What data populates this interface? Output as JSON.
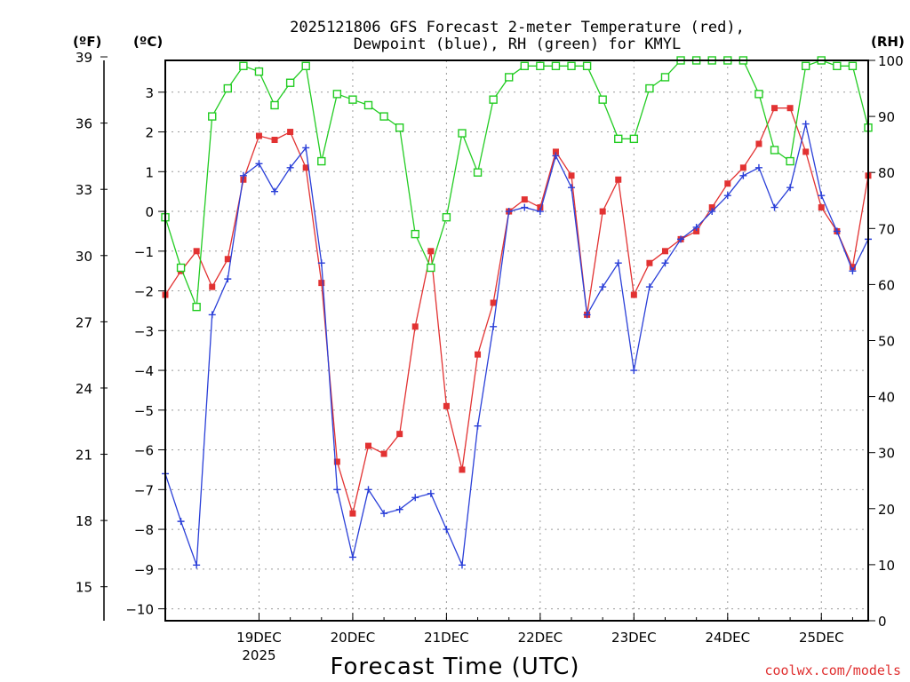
{
  "chart_data": {
    "type": "line",
    "title_line1": "2025121806 GFS Forecast 2-meter Temperature (red),",
    "title_line2": "Dewpoint (blue), RH (green) for KMYL",
    "unit_labels": {
      "fahrenheit": "(ºF)",
      "celsius": "(ºC)",
      "rh": "(RH)"
    },
    "xlabel": "Forecast Time (UTC)",
    "credit": "coolwx.com/models",
    "x_unit": "hours since 2025-12-18 00Z",
    "xlim": [
      6,
      141
    ],
    "x_ticks": [
      {
        "label": "19DEC",
        "sublabel": "2025",
        "x": 24
      },
      {
        "label": "20DEC",
        "sublabel": "",
        "x": 42
      },
      {
        "label": "21DEC",
        "sublabel": "",
        "x": 60
      },
      {
        "label": "22DEC",
        "sublabel": "",
        "x": 78
      },
      {
        "label": "23DEC",
        "sublabel": "",
        "x": 96
      },
      {
        "label": "24DEC",
        "sublabel": "",
        "x": 114
      },
      {
        "label": "25DEC",
        "sublabel": "",
        "x": 132
      }
    ],
    "celsius_axis": {
      "range": [
        -10.3,
        3.8
      ],
      "ticks": [
        3,
        2,
        1,
        0,
        -1,
        -2,
        -3,
        -4,
        -5,
        -6,
        -7,
        -8,
        -9,
        -10
      ],
      "tick_labels": [
        "3",
        "2",
        "1",
        "0",
        "−1",
        "−2",
        "−3",
        "−4",
        "−5",
        "−6",
        "−7",
        "−8",
        "−9",
        "−10"
      ]
    },
    "fahrenheit_axis": {
      "ticks": [
        39,
        36,
        33,
        30,
        27,
        24,
        21,
        18,
        15
      ],
      "tick_labels": [
        "39",
        "36",
        "33",
        "30",
        "27",
        "24",
        "21",
        "18",
        "15"
      ]
    },
    "rh_axis": {
      "range": [
        0,
        100
      ],
      "ticks": [
        100,
        90,
        80,
        70,
        60,
        50,
        40,
        30,
        20,
        10,
        0
      ],
      "tick_labels": [
        "100",
        "90",
        "80",
        "70",
        "60",
        "50",
        "40",
        "30",
        "20",
        "10",
        "0"
      ]
    },
    "grid": true,
    "series": [
      {
        "name": "Temperature",
        "unit": "C",
        "color": "#e23232",
        "marker": "filled-square",
        "x": [
          6,
          9,
          12,
          15,
          18,
          21,
          24,
          27,
          30,
          33,
          36,
          39,
          42,
          45,
          48,
          51,
          54,
          57,
          60,
          63,
          66,
          69,
          72,
          75,
          78,
          81,
          84,
          87,
          90,
          93,
          96,
          99,
          102,
          105,
          108,
          111,
          114,
          117,
          120,
          123,
          126,
          129,
          132,
          135,
          138,
          141
        ],
        "values": [
          -2.1,
          -1.5,
          -1.0,
          -1.9,
          -1.2,
          0.8,
          1.9,
          1.8,
          2.0,
          1.1,
          -1.8,
          -6.3,
          -7.6,
          -5.9,
          -6.1,
          -5.6,
          -2.9,
          -1.0,
          -4.9,
          -6.5,
          -3.6,
          -2.3,
          0.0,
          0.3,
          0.1,
          1.5,
          0.9,
          -2.6,
          0.0,
          0.8,
          -2.1,
          -1.3,
          -1.0,
          -0.7,
          -0.5,
          0.1,
          0.7,
          1.1,
          1.7,
          2.6,
          2.6,
          1.5,
          0.1,
          -0.5,
          -1.4,
          0.9
        ]
      },
      {
        "name": "Dewpoint",
        "unit": "C",
        "color": "#2a3fd8",
        "marker": "plus",
        "x": [
          6,
          9,
          12,
          15,
          18,
          21,
          24,
          27,
          30,
          33,
          36,
          39,
          42,
          45,
          48,
          51,
          54,
          57,
          60,
          63,
          66,
          69,
          72,
          75,
          78,
          81,
          84,
          87,
          90,
          93,
          96,
          99,
          102,
          105,
          108,
          111,
          114,
          117,
          120,
          123,
          126,
          129,
          132,
          135,
          138,
          141
        ],
        "values": [
          -6.6,
          -7.8,
          -8.9,
          -2.6,
          -1.7,
          0.9,
          1.2,
          0.5,
          1.1,
          1.6,
          -1.3,
          -7.0,
          -8.7,
          -7.0,
          -7.6,
          -7.5,
          -7.2,
          -7.1,
          -8.0,
          -8.9,
          -5.4,
          -2.9,
          0.0,
          0.1,
          0.0,
          1.4,
          0.6,
          -2.6,
          -1.9,
          -1.3,
          -4.0,
          -1.9,
          -1.3,
          -0.7,
          -0.4,
          0.0,
          0.4,
          0.9,
          1.1,
          0.1,
          0.6,
          2.2,
          0.4,
          -0.5,
          -1.5,
          -0.7
        ]
      },
      {
        "name": "RH",
        "unit": "%",
        "color": "#22cc22",
        "marker": "open-square",
        "x": [
          6,
          9,
          12,
          15,
          18,
          21,
          24,
          27,
          30,
          33,
          36,
          39,
          42,
          45,
          48,
          51,
          54,
          57,
          60,
          63,
          66,
          69,
          72,
          75,
          78,
          81,
          84,
          87,
          90,
          93,
          96,
          99,
          102,
          105,
          108,
          111,
          114,
          117,
          120,
          123,
          126,
          129,
          132,
          135,
          138,
          141
        ],
        "values": [
          72,
          63,
          56,
          90,
          95,
          99,
          98,
          92,
          96,
          99,
          82,
          94,
          93,
          92,
          90,
          88,
          69,
          63,
          72,
          87,
          80,
          93,
          97,
          99,
          99,
          99,
          99,
          99,
          93,
          86,
          86,
          95,
          97,
          100,
          100,
          100,
          100,
          100,
          94,
          84,
          82,
          99,
          100,
          99,
          99,
          88
        ]
      }
    ]
  }
}
